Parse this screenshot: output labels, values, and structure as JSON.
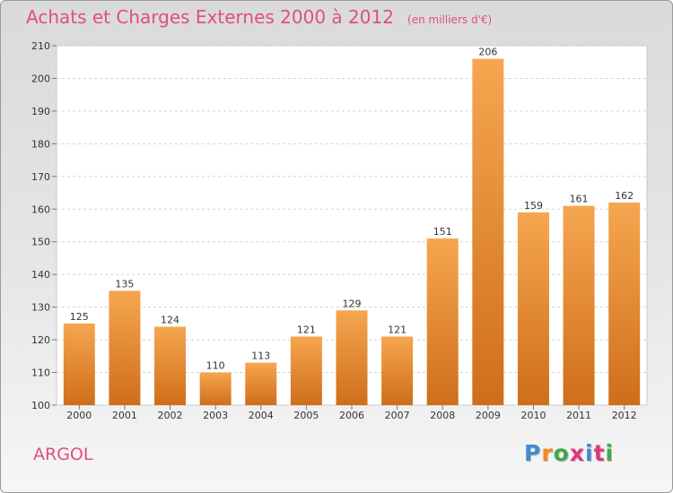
{
  "header": {
    "title": "Achats et Charges Externes 2000 à 2012",
    "subtitle": "(en milliers d'€)"
  },
  "footer": {
    "commune": "ARGOL",
    "logo_letters": [
      "P",
      "r",
      "o",
      "x",
      "i",
      "t",
      "i"
    ]
  },
  "colors": {
    "title": "#e0507a",
    "bar_top": "#f6a650",
    "bar_bottom": "#cf6e1a",
    "logo": [
      "#3f8ad6",
      "#f08a24",
      "#3fa84a",
      "#e0377a",
      "#3f8ad6",
      "#e0377a",
      "#3fa84a"
    ]
  },
  "chart_data": {
    "type": "bar",
    "title": "Achats et Charges Externes 2000 à 2012",
    "subtitle": "(en milliers d'€)",
    "categories": [
      "2000",
      "2001",
      "2002",
      "2003",
      "2004",
      "2005",
      "2006",
      "2007",
      "2008",
      "2009",
      "2010",
      "2011",
      "2012"
    ],
    "values": [
      125,
      135,
      124,
      110,
      113,
      121,
      129,
      121,
      151,
      206,
      159,
      161,
      162
    ],
    "ylim": [
      100,
      210
    ],
    "yticks": [
      100,
      110,
      120,
      130,
      140,
      150,
      160,
      170,
      180,
      190,
      200,
      210
    ],
    "grid": true,
    "legend": "none"
  }
}
